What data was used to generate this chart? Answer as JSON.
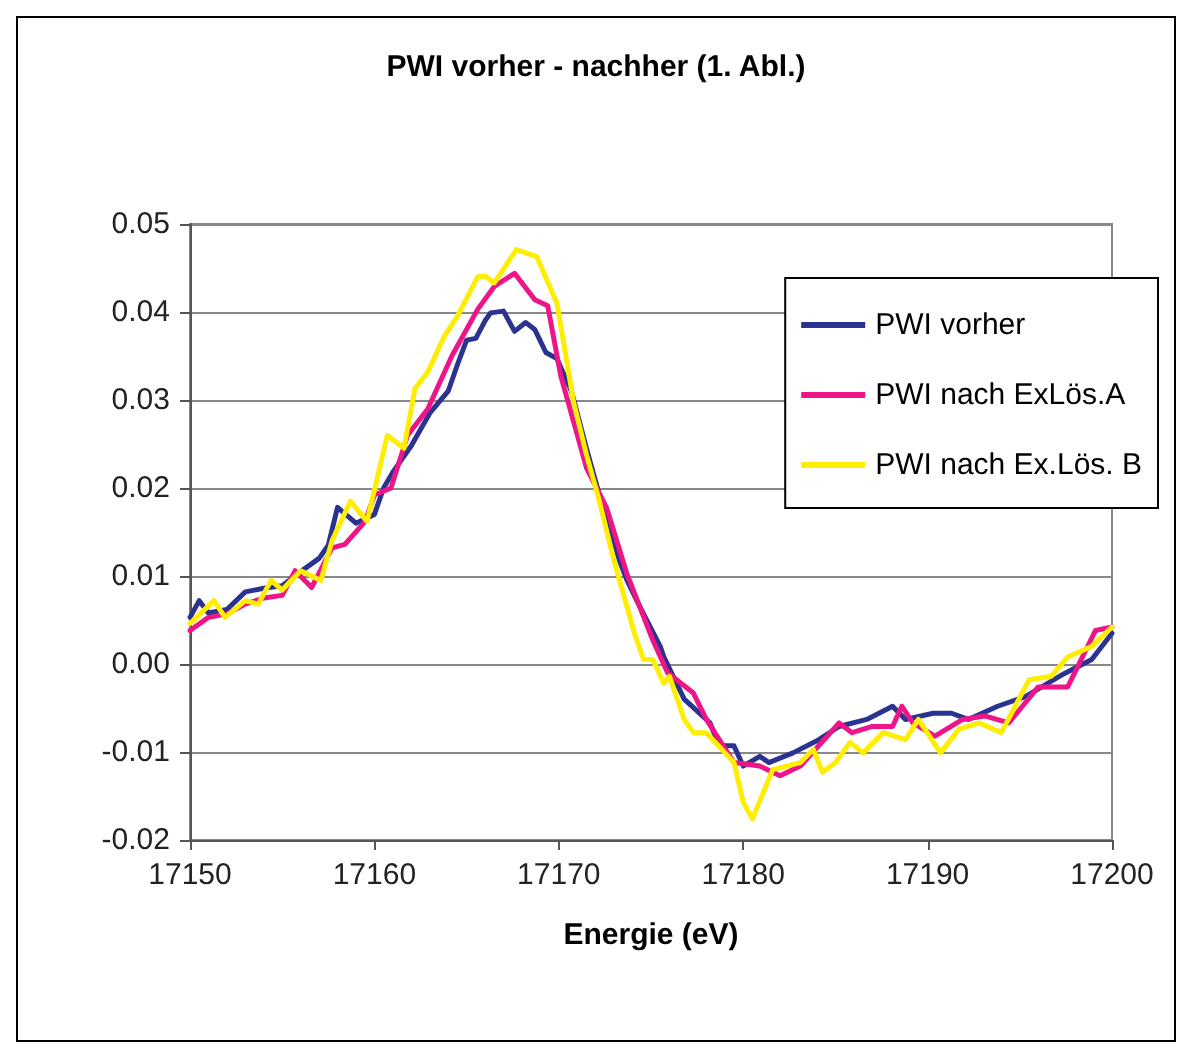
{
  "chart_data": {
    "type": "line",
    "title": "PWI vorher - nachher (1. Abl.)",
    "xlabel": "Energie (eV)",
    "xlim": [
      17150,
      17200
    ],
    "xticks": [
      17150,
      17160,
      17170,
      17180,
      17190,
      17200
    ],
    "ylim": [
      -0.02,
      0.05
    ],
    "yticks": [
      {
        "value": -0.02,
        "label": "-0.02"
      },
      -0.01,
      {
        "value": 0,
        "label": "0.00"
      },
      0.01,
      0.02,
      0.03,
      0.04,
      0.05
    ],
    "grid": "y",
    "legend": "top right",
    "marker": "none",
    "line_style": "solid",
    "series": [
      {
        "name": "PWI vorher",
        "color": "#2b3390",
        "x": [
          17150,
          17150.5,
          17151,
          17152,
          17153,
          17154,
          17155,
          17156,
          17157,
          17157.5,
          17158,
          17159,
          17160,
          17160.5,
          17161,
          17162,
          17163,
          17164,
          17164.5,
          17165,
          17165.5,
          17166,
          17166.3,
          17167,
          17167.6,
          17168.2,
          17168.7,
          17169.3,
          17169.9,
          17170.7,
          17171.5,
          17172.2,
          17173.3,
          17173.7,
          17174.4,
          17175.5,
          17175.7,
          17176.8,
          17178.2,
          17178.7,
          17179.5,
          17180,
          17180.9,
          17181.4,
          17182.7,
          17184.1,
          17185.2,
          17186.7,
          17188.1,
          17188.8,
          17190.3,
          17191.3,
          17192.2,
          17193.8,
          17195.3,
          17197.4,
          17198.9,
          17200
        ],
        "values": [
          0.0053,
          0.0072,
          0.0058,
          0.0062,
          0.0082,
          0.0086,
          0.0089,
          0.0105,
          0.012,
          0.0135,
          0.0178,
          0.016,
          0.017,
          0.02,
          0.0218,
          0.0248,
          0.0285,
          0.031,
          0.034,
          0.0368,
          0.037,
          0.039,
          0.0399,
          0.0401,
          0.0378,
          0.0388,
          0.038,
          0.0354,
          0.0347,
          0.0309,
          0.0245,
          0.0192,
          0.0117,
          0.0095,
          0.0065,
          0.002,
          0.0008,
          -0.004,
          -0.0067,
          -0.0093,
          -0.0093,
          -0.0116,
          -0.0105,
          -0.0112,
          -0.0101,
          -0.0086,
          -0.0071,
          -0.0063,
          -0.0048,
          -0.0063,
          -0.0056,
          -0.0056,
          -0.0063,
          -0.0048,
          -0.0037,
          -0.0011,
          0.0005,
          0.0035
        ]
      },
      {
        "name": "PWI nach ExLös.A",
        "color": "#ee1589",
        "x": [
          17150,
          17151,
          17152,
          17153,
          17154,
          17155,
          17155.7,
          17156.6,
          17157.7,
          17158.4,
          17159.5,
          17160,
          17160.9,
          17161.8,
          17162.9,
          17164.2,
          17165.6,
          17166.5,
          17167.6,
          17168.7,
          17169.4,
          17170.1,
          17171.5,
          17172.6,
          17173.7,
          17175.1,
          17175.9,
          17177.3,
          17178,
          17179.5,
          17180.9,
          17182,
          17183.1,
          17185.2,
          17185.9,
          17187,
          17188.1,
          17188.6,
          17189.2,
          17190.4,
          17191.9,
          17193.1,
          17194.4,
          17196,
          17197.6,
          17199.1,
          17200
        ],
        "values": [
          0.0038,
          0.0053,
          0.0057,
          0.0068,
          0.0075,
          0.0078,
          0.0106,
          0.0087,
          0.0132,
          0.0136,
          0.0162,
          0.0192,
          0.02,
          0.026,
          0.029,
          0.035,
          0.0403,
          0.0429,
          0.0444,
          0.0414,
          0.0407,
          0.0328,
          0.0223,
          0.0177,
          0.0102,
          0.0027,
          -0.001,
          -0.0033,
          -0.0063,
          -0.0112,
          -0.0116,
          -0.0127,
          -0.0116,
          -0.0067,
          -0.0078,
          -0.0071,
          -0.0071,
          -0.0048,
          -0.0067,
          -0.0082,
          -0.0063,
          -0.0059,
          -0.0067,
          -0.0026,
          -0.0026,
          0.0038,
          0.0042
        ]
      },
      {
        "name": "PWI nach Ex.Lös. B",
        "color": "#ffee00",
        "x": [
          17150,
          17151.3,
          17151.9,
          17153,
          17153.7,
          17154.4,
          17155,
          17156,
          17157.1,
          17157.7,
          17158.7,
          17159.6,
          17160.7,
          17161.6,
          17162.2,
          17162.9,
          17163.8,
          17164.5,
          17165.6,
          17166,
          17166.5,
          17167.7,
          17168.8,
          17169.9,
          17170.8,
          17171.5,
          17172.2,
          17173,
          17174.1,
          17174.6,
          17175.1,
          17175.7,
          17176,
          17176.8,
          17177.3,
          17178,
          17179.5,
          17180,
          17180.5,
          17181.6,
          17183.1,
          17183.8,
          17184.3,
          17185,
          17185.8,
          17186.5,
          17187.6,
          17188.8,
          17189.5,
          17190.7,
          17191.7,
          17192.8,
          17194,
          17195.5,
          17196.7,
          17197.6,
          17198.9,
          17200
        ],
        "values": [
          0.0046,
          0.0072,
          0.0053,
          0.0072,
          0.0068,
          0.0095,
          0.0084,
          0.0106,
          0.0095,
          0.014,
          0.0185,
          0.0162,
          0.026,
          0.0245,
          0.0313,
          0.0332,
          0.0373,
          0.0395,
          0.044,
          0.0441,
          0.0433,
          0.0471,
          0.0463,
          0.041,
          0.0298,
          0.0238,
          0.0185,
          0.0117,
          0.0035,
          0.0005,
          0.0005,
          -0.0022,
          -0.0014,
          -0.0063,
          -0.0078,
          -0.0078,
          -0.0112,
          -0.0157,
          -0.0176,
          -0.012,
          -0.0112,
          -0.0097,
          -0.0123,
          -0.0112,
          -0.0089,
          -0.0101,
          -0.0078,
          -0.0086,
          -0.0063,
          -0.0101,
          -0.0074,
          -0.0067,
          -0.0078,
          -0.0018,
          -0.0014,
          0.0008,
          0.002,
          0.0042
        ]
      }
    ]
  }
}
